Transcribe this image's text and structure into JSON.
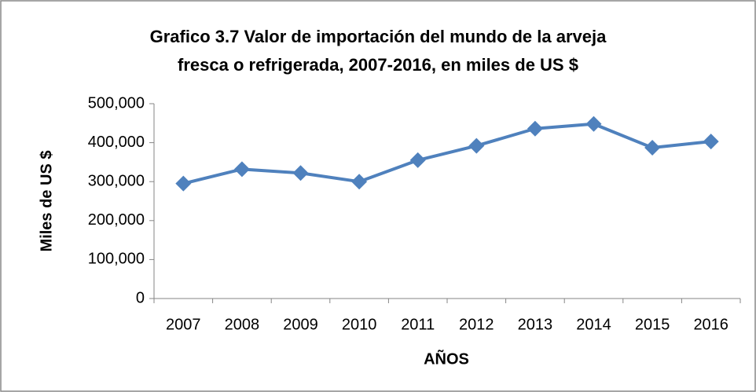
{
  "chart_data": {
    "type": "line",
    "title": [
      "Grafico 3.7 Valor de importación del mundo de la arveja",
      "fresca o refrigerada, 2007-2016, en miles de US $"
    ],
    "x_label": "AÑOS",
    "y_label": "Miles de US $",
    "categories": [
      "2007",
      "2008",
      "2009",
      "2010",
      "2011",
      "2012",
      "2013",
      "2014",
      "2015",
      "2016"
    ],
    "series": [
      {
        "name": "Valor de importación",
        "color": "#4f81bd",
        "values": [
          295000,
          332000,
          322000,
          300000,
          355000,
          392000,
          436000,
          448000,
          387000,
          403000
        ]
      }
    ],
    "ylim": [
      0,
      500000
    ],
    "yticks": [
      0,
      {
        "value": 100000,
        "label": "100,000"
      },
      {
        "value": 200000,
        "label": "200,000"
      },
      {
        "value": 300000,
        "label": "300,000"
      },
      {
        "value": 400000,
        "label": "400,000"
      },
      {
        "value": 500000,
        "label": "500,000"
      }
    ],
    "grid": false,
    "legend": false
  }
}
